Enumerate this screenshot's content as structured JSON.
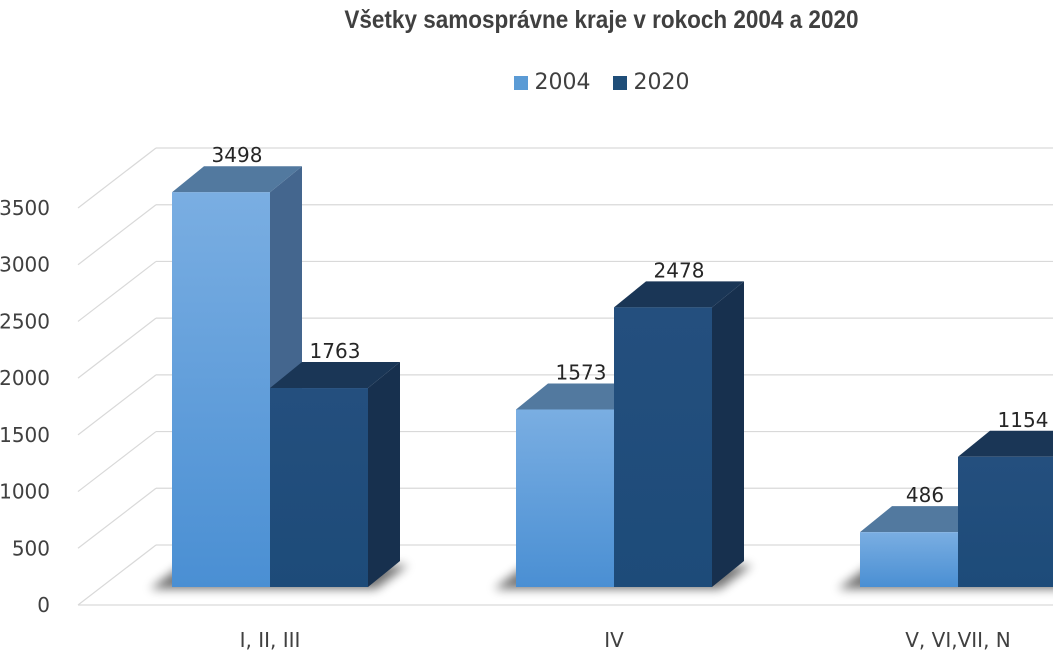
{
  "chart_data": {
    "type": "bar",
    "title": "Všetky samosprávne kraje v rokoch 2004 a 2020",
    "categories": [
      "I, II, III",
      "IV",
      "V, VI,VII, N"
    ],
    "series": [
      {
        "name": "2004",
        "values": [
          3498,
          1573,
          486
        ]
      },
      {
        "name": "2020",
        "values": [
          1763,
          2478,
          1154
        ]
      }
    ],
    "ylim": [
      0,
      3500
    ],
    "yticks": [
      "0",
      "500",
      "1000",
      "1500",
      "2000",
      "2500",
      "3000",
      "3500"
    ],
    "grid": true,
    "legend": "top",
    "style": "3d-clustered-column",
    "colors": {
      "2004": "#5b9bd5",
      "2020": "#1f4e79"
    }
  }
}
